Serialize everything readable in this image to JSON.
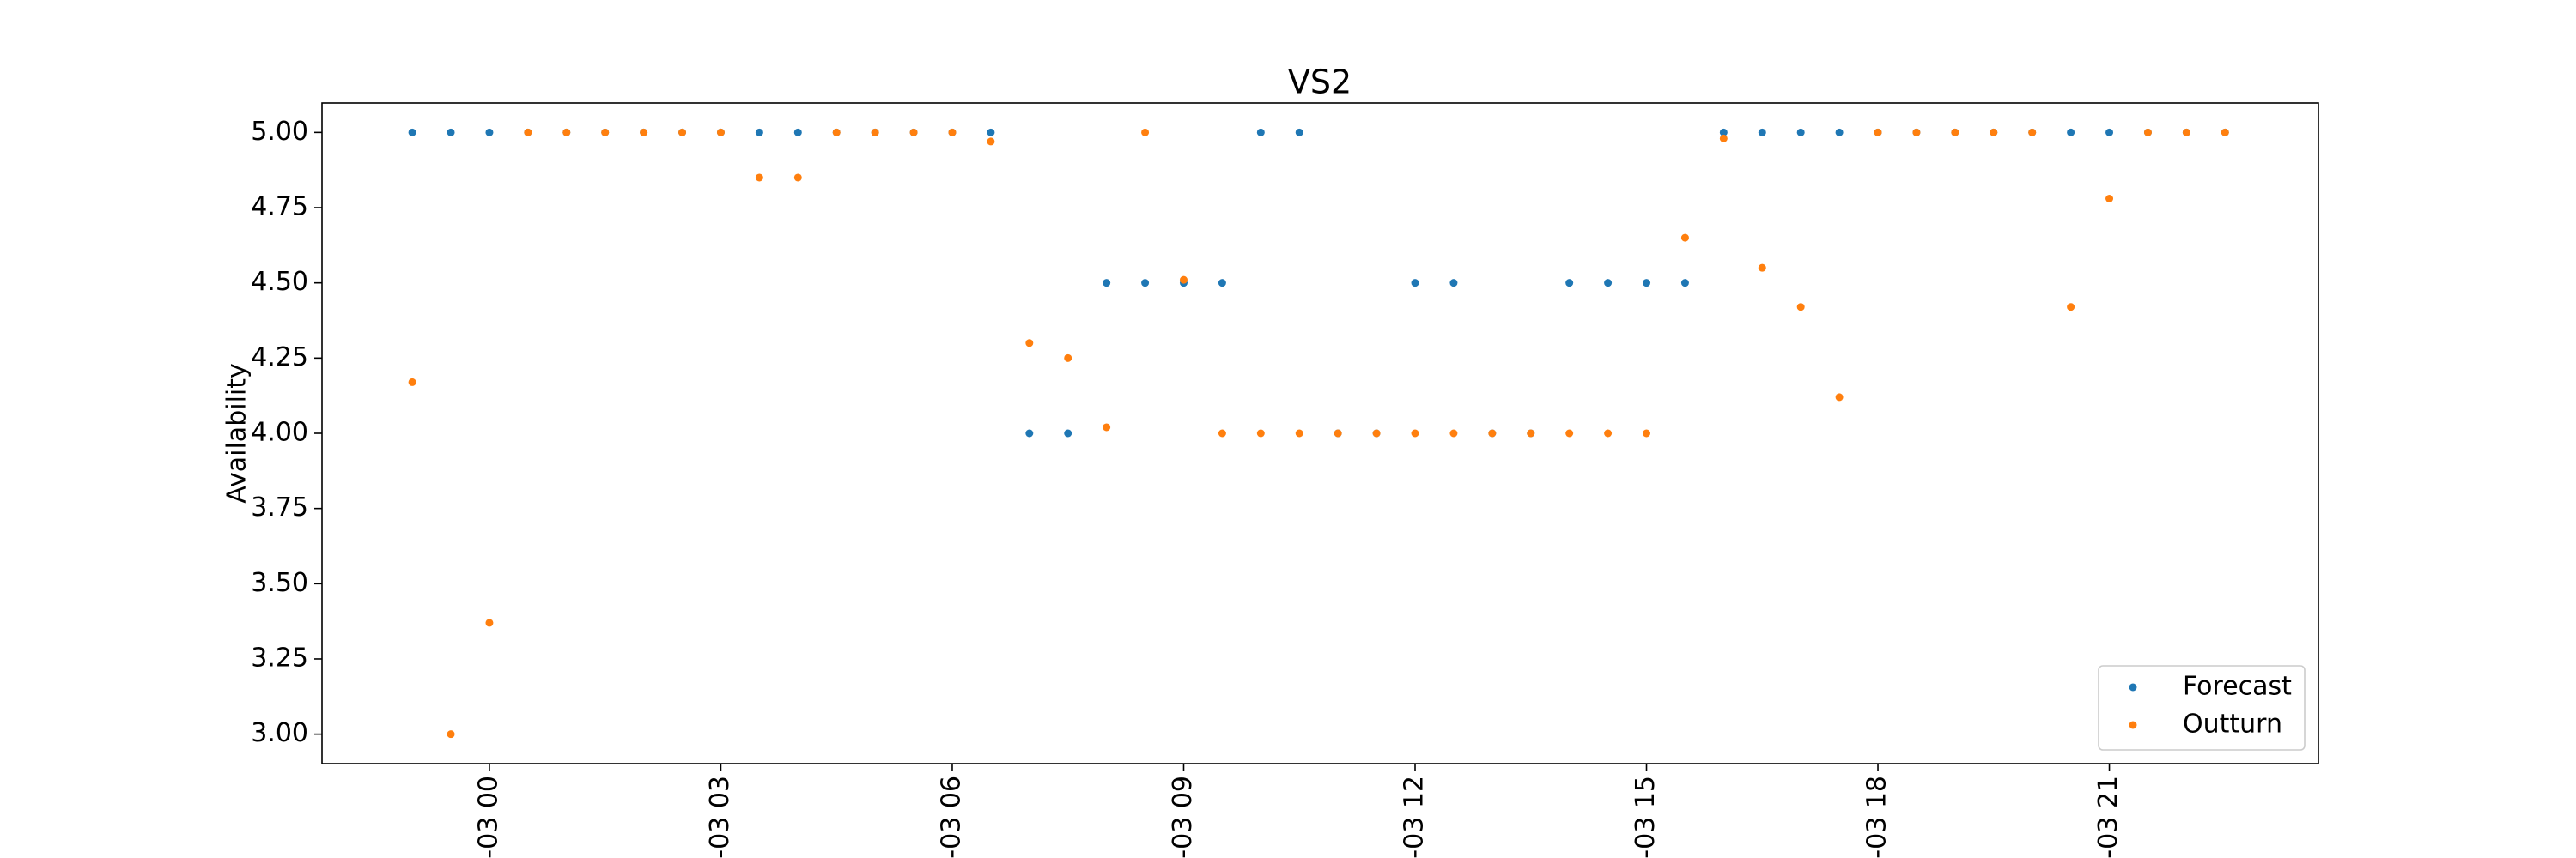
{
  "chart_data": {
    "type": "scatter",
    "title": "VS2",
    "y_label": "Availability",
    "x": [
      -1,
      -0.5,
      0,
      0.5,
      1,
      1.5,
      2,
      2.5,
      3,
      3.5,
      4,
      4.5,
      5,
      5.5,
      6,
      6.5,
      7,
      7.5,
      8,
      8.5,
      9,
      9.5,
      10,
      10.5,
      11,
      11.5,
      12,
      12.5,
      13,
      13.5,
      14,
      14.5,
      15,
      15.5,
      16,
      16.5,
      17,
      17.5,
      18,
      18.5,
      19,
      19.5,
      20,
      20.5,
      21,
      21.5,
      22,
      22.5
    ],
    "series": [
      {
        "name": "Forecast",
        "color": "#1f77b4",
        "values": [
          5,
          5,
          5,
          5,
          5,
          5,
          5,
          5,
          5,
          5,
          5,
          5,
          5,
          5,
          5,
          5,
          4,
          4,
          4.5,
          4.5,
          4.5,
          4.5,
          5,
          5,
          4,
          4,
          4.5,
          4.5,
          4,
          4,
          4.5,
          4.5,
          4.5,
          4.5,
          5,
          5,
          5,
          5,
          5,
          5,
          5,
          5,
          5,
          5,
          5,
          5,
          5,
          5
        ]
      },
      {
        "name": "Outturn",
        "color": "#ff7f0e",
        "values": [
          4.17,
          3.0,
          3.37,
          5,
          5,
          5,
          5,
          5,
          5,
          4.85,
          4.85,
          5,
          5,
          5,
          5,
          4.97,
          4.3,
          4.25,
          4.02,
          5,
          4.51,
          4,
          4,
          4,
          4,
          4,
          4,
          4,
          4,
          4,
          4,
          4,
          4,
          4.65,
          4.98,
          4.55,
          4.42,
          4.12,
          5,
          5,
          5,
          5,
          5,
          4.42,
          4.78,
          5,
          5,
          5
        ]
      }
    ],
    "xlim": [
      -2.17,
      23.71
    ],
    "xticks": [
      {
        "value": 0,
        "label": "-03 00"
      },
      {
        "value": 3,
        "label": "-03 03"
      },
      {
        "value": 6,
        "label": "-03 06"
      },
      {
        "value": 9,
        "label": "-03 09"
      },
      {
        "value": 12,
        "label": "-03 12"
      },
      {
        "value": 15,
        "label": "-03 15"
      },
      {
        "value": 18,
        "label": "-03 18"
      },
      {
        "value": 21,
        "label": "-03 21"
      }
    ],
    "ylim": [
      2.902,
      5.098
    ],
    "yticks": [
      {
        "value": 3,
        "label": "3.00"
      },
      {
        "value": 3.25,
        "label": "3.25"
      },
      {
        "value": 3.5,
        "label": "3.50"
      },
      {
        "value": 3.75,
        "label": "3.75"
      },
      {
        "value": 4,
        "label": "4.00"
      },
      {
        "value": 4.25,
        "label": "4.25"
      },
      {
        "value": 4.5,
        "label": "4.50"
      },
      {
        "value": 4.75,
        "label": "4.75"
      },
      {
        "value": 5,
        "label": "5.00"
      }
    ],
    "legend": "lower right",
    "grid": false
  }
}
